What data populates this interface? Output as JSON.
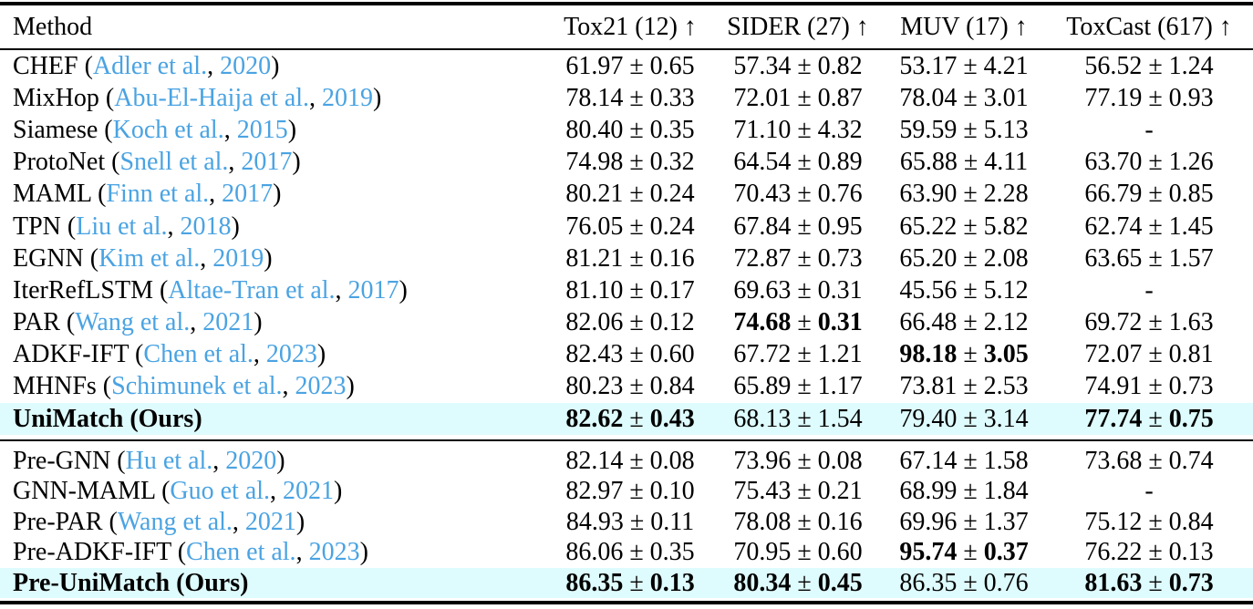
{
  "colors": {
    "citation_link": "#4aa3e2",
    "row_highlight": "#defbfd",
    "rule": "#000000",
    "text": "#000000"
  },
  "table": {
    "headers": [
      "Method",
      "Tox21 (12) ↑",
      "SIDER (27) ↑",
      "MUV (17) ↑",
      "ToxCast (617) ↑"
    ],
    "groups": [
      {
        "name": "main",
        "rows": [
          {
            "method": {
              "text_before": "CHEF (",
              "link_authors": "Adler et al.",
              "text_mid": ", ",
              "link_year": "2020",
              "text_after": ")"
            },
            "values": [
              {
                "text": "61.97 ± 0.65",
                "bold": false
              },
              {
                "text": "57.34 ± 0.82",
                "bold": false
              },
              {
                "text": "53.17 ± 4.21",
                "bold": false
              },
              {
                "text": "56.52 ± 1.24",
                "bold": false
              }
            ],
            "highlight": false
          },
          {
            "method": {
              "text_before": "MixHop (",
              "link_authors": "Abu-El-Haija et al.",
              "text_mid": ", ",
              "link_year": "2019",
              "text_after": ")"
            },
            "values": [
              {
                "text": "78.14 ± 0.33",
                "bold": false
              },
              {
                "text": "72.01 ± 0.87",
                "bold": false
              },
              {
                "text": "78.04 ± 3.01",
                "bold": false
              },
              {
                "text": "77.19 ± 0.93",
                "bold": false
              }
            ],
            "highlight": false
          },
          {
            "method": {
              "text_before": "Siamese (",
              "link_authors": "Koch et al.",
              "text_mid": ", ",
              "link_year": "2015",
              "text_after": ")"
            },
            "values": [
              {
                "text": "80.40 ± 0.35",
                "bold": false
              },
              {
                "text": "71.10 ± 4.32",
                "bold": false
              },
              {
                "text": "59.59 ± 5.13",
                "bold": false
              },
              {
                "text": "-",
                "bold": false
              }
            ],
            "highlight": false
          },
          {
            "method": {
              "text_before": "ProtoNet (",
              "link_authors": "Snell et al.",
              "text_mid": ", ",
              "link_year": "2017",
              "text_after": ")"
            },
            "values": [
              {
                "text": "74.98 ± 0.32",
                "bold": false
              },
              {
                "text": "64.54 ± 0.89",
                "bold": false
              },
              {
                "text": "65.88 ± 4.11",
                "bold": false
              },
              {
                "text": "63.70 ± 1.26",
                "bold": false
              }
            ],
            "highlight": false
          },
          {
            "method": {
              "text_before": "MAML (",
              "link_authors": "Finn et al.",
              "text_mid": ", ",
              "link_year": "2017",
              "text_after": ")"
            },
            "values": [
              {
                "text": "80.21 ± 0.24",
                "bold": false
              },
              {
                "text": "70.43 ± 0.76",
                "bold": false
              },
              {
                "text": "63.90 ± 2.28",
                "bold": false
              },
              {
                "text": "66.79 ± 0.85",
                "bold": false
              }
            ],
            "highlight": false
          },
          {
            "method": {
              "text_before": "TPN (",
              "link_authors": "Liu et al.",
              "text_mid": ", ",
              "link_year": "2018",
              "text_after": ")"
            },
            "values": [
              {
                "text": "76.05 ± 0.24",
                "bold": false
              },
              {
                "text": "67.84 ± 0.95",
                "bold": false
              },
              {
                "text": "65.22 ± 5.82",
                "bold": false
              },
              {
                "text": "62.74 ± 1.45",
                "bold": false
              }
            ],
            "highlight": false
          },
          {
            "method": {
              "text_before": "EGNN (",
              "link_authors": "Kim et al.",
              "text_mid": ", ",
              "link_year": "2019",
              "text_after": ")"
            },
            "values": [
              {
                "text": "81.21 ± 0.16",
                "bold": false
              },
              {
                "text": "72.87 ± 0.73",
                "bold": false
              },
              {
                "text": "65.20 ± 2.08",
                "bold": false
              },
              {
                "text": "63.65 ± 1.57",
                "bold": false
              }
            ],
            "highlight": false
          },
          {
            "method": {
              "text_before": "IterRefLSTM (",
              "link_authors": "Altae-Tran et al.",
              "text_mid": ", ",
              "link_year": "2017",
              "text_after": ")"
            },
            "values": [
              {
                "text": "81.10 ± 0.17",
                "bold": false
              },
              {
                "text": "69.63 ± 0.31",
                "bold": false
              },
              {
                "text": "45.56 ± 5.12",
                "bold": false
              },
              {
                "text": "-",
                "bold": false
              }
            ],
            "highlight": false
          },
          {
            "method": {
              "text_before": "PAR (",
              "link_authors": "Wang et al.",
              "text_mid": ", ",
              "link_year": "2021",
              "text_after": ")"
            },
            "values": [
              {
                "text": "82.06 ± 0.12",
                "bold": false
              },
              {
                "text": "74.68 ± 0.31",
                "bold": true
              },
              {
                "text": "66.48 ± 2.12",
                "bold": false
              },
              {
                "text": "69.72 ± 1.63",
                "bold": false
              }
            ],
            "highlight": false
          },
          {
            "method": {
              "text_before": "ADKF-IFT (",
              "link_authors": "Chen et al.",
              "text_mid": ", ",
              "link_year": "2023",
              "text_after": ")"
            },
            "values": [
              {
                "text": "82.43 ± 0.60",
                "bold": false
              },
              {
                "text": "67.72 ± 1.21",
                "bold": false
              },
              {
                "text": "98.18 ± 3.05",
                "bold": true
              },
              {
                "text": "72.07 ± 0.81",
                "bold": false
              }
            ],
            "highlight": false
          },
          {
            "method": {
              "text_before": "MHNFs (",
              "link_authors": "Schimunek et al.",
              "text_mid": ", ",
              "link_year": "2023",
              "text_after": ")"
            },
            "values": [
              {
                "text": "80.23 ± 0.84",
                "bold": false
              },
              {
                "text": "65.89 ± 1.17",
                "bold": false
              },
              {
                "text": "73.81 ± 2.53",
                "bold": false
              },
              {
                "text": "74.91 ± 0.73",
                "bold": false
              }
            ],
            "highlight": false
          },
          {
            "method": {
              "text_before": "UniMatch (Ours)",
              "bold": true
            },
            "values": [
              {
                "text": "82.62 ± 0.43",
                "bold": true
              },
              {
                "text": "68.13 ± 1.54",
                "bold": false
              },
              {
                "text": "79.40 ± 3.14",
                "bold": false
              },
              {
                "text": "77.74 ± 0.75",
                "bold": true
              }
            ],
            "highlight": true
          }
        ]
      },
      {
        "name": "pretrained",
        "rows": [
          {
            "method": {
              "text_before": "Pre-GNN (",
              "link_authors": "Hu et al.",
              "text_mid": ", ",
              "link_year": "2020",
              "text_after": ")"
            },
            "values": [
              {
                "text": "82.14 ± 0.08",
                "bold": false
              },
              {
                "text": "73.96 ± 0.08",
                "bold": false
              },
              {
                "text": "67.14 ± 1.58",
                "bold": false
              },
              {
                "text": "73.68 ± 0.74",
                "bold": false
              }
            ],
            "highlight": false
          },
          {
            "method": {
              "text_before": "GNN-MAML (",
              "link_authors": "Guo et al.",
              "text_mid": ", ",
              "link_year": "2021",
              "text_after": ")"
            },
            "values": [
              {
                "text": "82.97 ± 0.10",
                "bold": false
              },
              {
                "text": "75.43 ± 0.21",
                "bold": false
              },
              {
                "text": "68.99 ± 1.84",
                "bold": false
              },
              {
                "text": "-",
                "bold": false
              }
            ],
            "highlight": false
          },
          {
            "method": {
              "text_before": "Pre-PAR (",
              "link_authors": "Wang et al.",
              "text_mid": ", ",
              "link_year": "2021",
              "text_after": ")"
            },
            "values": [
              {
                "text": "84.93 ± 0.11",
                "bold": false
              },
              {
                "text": "78.08 ± 0.16",
                "bold": false
              },
              {
                "text": "69.96 ± 1.37",
                "bold": false
              },
              {
                "text": "75.12 ± 0.84",
                "bold": false
              }
            ],
            "highlight": false
          },
          {
            "method": {
              "text_before": "Pre-ADKF-IFT (",
              "link_authors": "Chen et al.",
              "text_mid": ", ",
              "link_year": "2023",
              "text_after": ")"
            },
            "values": [
              {
                "text": "86.06 ± 0.35",
                "bold": false
              },
              {
                "text": "70.95 ± 0.60",
                "bold": false
              },
              {
                "text": "95.74 ± 0.37",
                "bold": true
              },
              {
                "text": "76.22 ± 0.13",
                "bold": false
              }
            ],
            "highlight": false
          },
          {
            "method": {
              "text_before": "Pre-UniMatch (Ours)",
              "bold": true
            },
            "values": [
              {
                "text": "86.35 ± 0.13",
                "bold": true
              },
              {
                "text": "80.34 ± 0.45",
                "bold": true
              },
              {
                "text": "86.35 ± 0.76",
                "bold": false
              },
              {
                "text": "81.63 ± 0.73",
                "bold": true
              }
            ],
            "highlight": true
          }
        ]
      }
    ]
  }
}
